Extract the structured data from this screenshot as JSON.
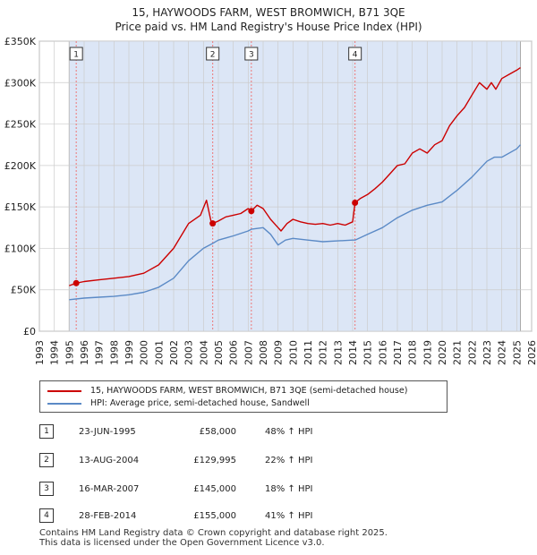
{
  "title_line1": "15, HAYWOODS FARM, WEST BROMWICH, B71 3QE",
  "title_line2": "Price paid vs. HM Land Registry's House Price Index (HPI)",
  "legend": {
    "property": "15, HAYWOODS FARM, WEST BROMWICH, B71 3QE (semi-detached house)",
    "hpi": "HPI: Average price, semi-detached house, Sandwell"
  },
  "sales": [
    {
      "num": "1",
      "date": "23-JUN-1995",
      "price": "£58,000",
      "hpi": "48% ↑ HPI"
    },
    {
      "num": "2",
      "date": "13-AUG-2004",
      "price": "£129,995",
      "hpi": "22% ↑ HPI"
    },
    {
      "num": "3",
      "date": "16-MAR-2007",
      "price": "£145,000",
      "hpi": "18% ↑ HPI"
    },
    {
      "num": "4",
      "date": "28-FEB-2014",
      "price": "£155,000",
      "hpi": "41% ↑ HPI"
    }
  ],
  "footer_line1": "Contains HM Land Registry data © Crown copyright and database right 2025.",
  "footer_line2": "This data is licensed under the Open Government Licence v3.0.",
  "colors": {
    "property": "#cc0000",
    "hpi": "#5b8ac6",
    "shade": "#dce6f6",
    "sale_line": "#ee7777",
    "grid": "#cccccc"
  },
  "chart_data": {
    "type": "line",
    "xlim": [
      1993,
      2026
    ],
    "ylim": [
      0,
      350000
    ],
    "y_ticks": [
      0,
      50000,
      100000,
      150000,
      200000,
      250000,
      300000,
      350000
    ],
    "y_tick_labels": [
      "£0",
      "£50K",
      "£100K",
      "£150K",
      "£200K",
      "£250K",
      "£300K",
      "£350K"
    ],
    "x_ticks": [
      1993,
      1994,
      1995,
      1996,
      1997,
      1998,
      1999,
      2000,
      2001,
      2002,
      2003,
      2004,
      2005,
      2006,
      2007,
      2008,
      2009,
      2010,
      2011,
      2012,
      2013,
      2014,
      2015,
      2016,
      2017,
      2018,
      2019,
      2020,
      2021,
      2022,
      2023,
      2024,
      2025,
      2026
    ],
    "x_tick_labels": [
      "1993",
      "1994",
      "1995",
      "1996",
      "1997",
      "1998",
      "1999",
      "2000",
      "2001",
      "2002",
      "2003",
      "2004",
      "2005",
      "2006",
      "2007",
      "2008",
      "2009",
      "2010",
      "2011",
      "2012",
      "2013",
      "2014",
      "2015",
      "2016",
      "2017",
      "2018",
      "2019",
      "2020",
      "2021",
      "2022",
      "2023",
      "2024",
      "2025",
      "2026"
    ],
    "data_range": [
      1995.0,
      2025.25
    ],
    "sale_markers": [
      {
        "label": "1",
        "x": 1995.47,
        "y": 58000
      },
      {
        "label": "2",
        "x": 2004.62,
        "y": 129995
      },
      {
        "label": "3",
        "x": 2007.21,
        "y": 145000
      },
      {
        "label": "4",
        "x": 2014.16,
        "y": 155000
      }
    ],
    "series": [
      {
        "name": "15, HAYWOODS FARM, WEST BROMWICH, B71 3QE (semi-detached house)",
        "x": [
          1995.0,
          1995.47,
          1996.0,
          1997.0,
          1998.0,
          1999.0,
          2000.0,
          2001.0,
          2002.0,
          2003.0,
          2003.8,
          2004.2,
          2004.5,
          2004.62,
          2005.0,
          2005.5,
          2006.0,
          2006.5,
          2007.0,
          2007.21,
          2007.6,
          2008.0,
          2008.5,
          2009.0,
          2009.2,
          2009.6,
          2010.0,
          2010.5,
          2011.0,
          2011.5,
          2012.0,
          2012.5,
          2013.0,
          2013.5,
          2014.0,
          2014.16,
          2014.5,
          2015.0,
          2015.5,
          2016.0,
          2016.5,
          2017.0,
          2017.5,
          2018.0,
          2018.5,
          2019.0,
          2019.5,
          2020.0,
          2020.5,
          2021.0,
          2021.5,
          2022.0,
          2022.5,
          2023.0,
          2023.3,
          2023.6,
          2024.0,
          2024.5,
          2025.0,
          2025.25
        ],
        "values": [
          55000,
          58000,
          60000,
          62000,
          64000,
          66000,
          70000,
          80000,
          100000,
          130000,
          140000,
          158000,
          133000,
          129995,
          133000,
          138000,
          140000,
          142000,
          148000,
          145000,
          152000,
          148000,
          135000,
          125000,
          121000,
          130000,
          135000,
          132000,
          130000,
          129000,
          130000,
          128000,
          130000,
          128000,
          132000,
          155000,
          160000,
          165000,
          172000,
          180000,
          190000,
          200000,
          202000,
          215000,
          220000,
          215000,
          225000,
          230000,
          248000,
          260000,
          270000,
          285000,
          300000,
          292000,
          300000,
          292000,
          305000,
          310000,
          315000,
          318000
        ]
      },
      {
        "name": "HPI: Average price, semi-detached house, Sandwell",
        "x": [
          1995.0,
          1996.0,
          1997.0,
          1998.0,
          1999.0,
          2000.0,
          2001.0,
          2002.0,
          2003.0,
          2004.0,
          2004.62,
          2005.0,
          2006.0,
          2007.0,
          2007.21,
          2008.0,
          2008.5,
          2009.0,
          2009.5,
          2010.0,
          2011.0,
          2012.0,
          2013.0,
          2014.0,
          2014.16,
          2015.0,
          2016.0,
          2017.0,
          2018.0,
          2019.0,
          2020.0,
          2021.0,
          2022.0,
          2023.0,
          2023.5,
          2024.0,
          2025.0,
          2025.25
        ],
        "values": [
          38000,
          40000,
          41000,
          42000,
          44000,
          47000,
          53000,
          64000,
          85000,
          100000,
          106000,
          110000,
          115000,
          121000,
          123000,
          125000,
          117000,
          104000,
          110000,
          112000,
          110000,
          108000,
          109000,
          110000,
          110000,
          117000,
          125000,
          137000,
          146000,
          152000,
          156000,
          170000,
          186000,
          205000,
          210000,
          210000,
          220000,
          225000
        ]
      }
    ]
  }
}
